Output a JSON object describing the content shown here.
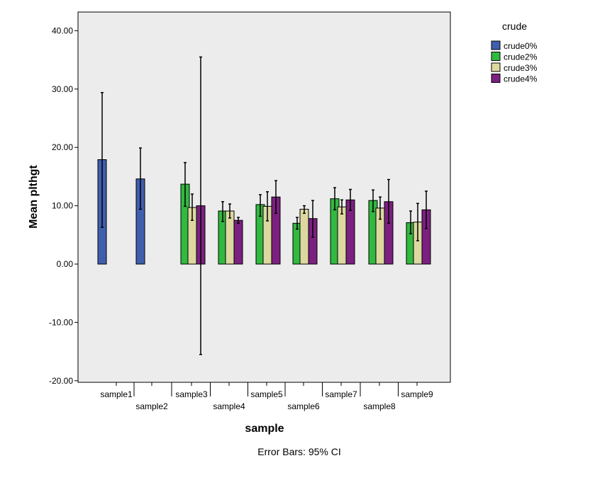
{
  "chart_data": {
    "type": "bar",
    "xlabel": "sample",
    "ylabel": "Mean plthgt",
    "ylim": [
      -20,
      40
    ],
    "yticks": [
      "40.00",
      "30.00",
      "20.00",
      "10.00",
      "0.00",
      "-10.00",
      "-20.00"
    ],
    "categories": [
      "sample1",
      "sample2",
      "sample3",
      "sample4",
      "sample5",
      "sample6",
      "sample7",
      "sample8",
      "sample9"
    ],
    "legend_title": "crude",
    "legend_position": "right",
    "footnote": "Error Bars: 95% CI",
    "background": "#ececec",
    "series": [
      {
        "name": "crude0%",
        "color": "#3f5fae",
        "values": [
          17.9,
          14.6,
          null,
          null,
          null,
          null,
          null,
          null,
          null
        ],
        "ci_low": [
          6.3,
          9.4,
          null,
          null,
          null,
          null,
          null,
          null,
          null
        ],
        "ci_high": [
          29.4,
          19.9,
          null,
          null,
          null,
          null,
          null,
          null,
          null
        ]
      },
      {
        "name": "crude2%",
        "color": "#31b940",
        "values": [
          null,
          null,
          13.7,
          9.1,
          10.2,
          7.0,
          11.2,
          10.9,
          7.1
        ],
        "ci_low": [
          null,
          null,
          9.9,
          7.3,
          8.2,
          6.0,
          9.3,
          9.0,
          5.2
        ],
        "ci_high": [
          null,
          null,
          17.4,
          10.7,
          11.9,
          8.0,
          13.1,
          12.7,
          9.1
        ]
      },
      {
        "name": "crude3%",
        "color": "#dcd8a0",
        "values": [
          null,
          null,
          9.7,
          9.1,
          9.9,
          9.4,
          9.8,
          9.6,
          7.2
        ],
        "ci_low": [
          null,
          null,
          7.5,
          7.9,
          7.4,
          8.7,
          8.6,
          7.7,
          4.0
        ],
        "ci_high": [
          null,
          null,
          12.0,
          10.3,
          12.4,
          10.0,
          11.0,
          11.5,
          10.4
        ]
      },
      {
        "name": "crude4%",
        "color": "#7b2080",
        "values": [
          null,
          null,
          10.0,
          7.5,
          11.5,
          7.8,
          11.0,
          10.7,
          9.3
        ],
        "ci_low": [
          null,
          null,
          -15.5,
          7.0,
          8.7,
          4.6,
          9.2,
          7.0,
          6.1
        ],
        "ci_high": [
          null,
          null,
          35.5,
          8.0,
          14.3,
          10.9,
          12.8,
          14.5,
          12.5
        ]
      }
    ]
  }
}
